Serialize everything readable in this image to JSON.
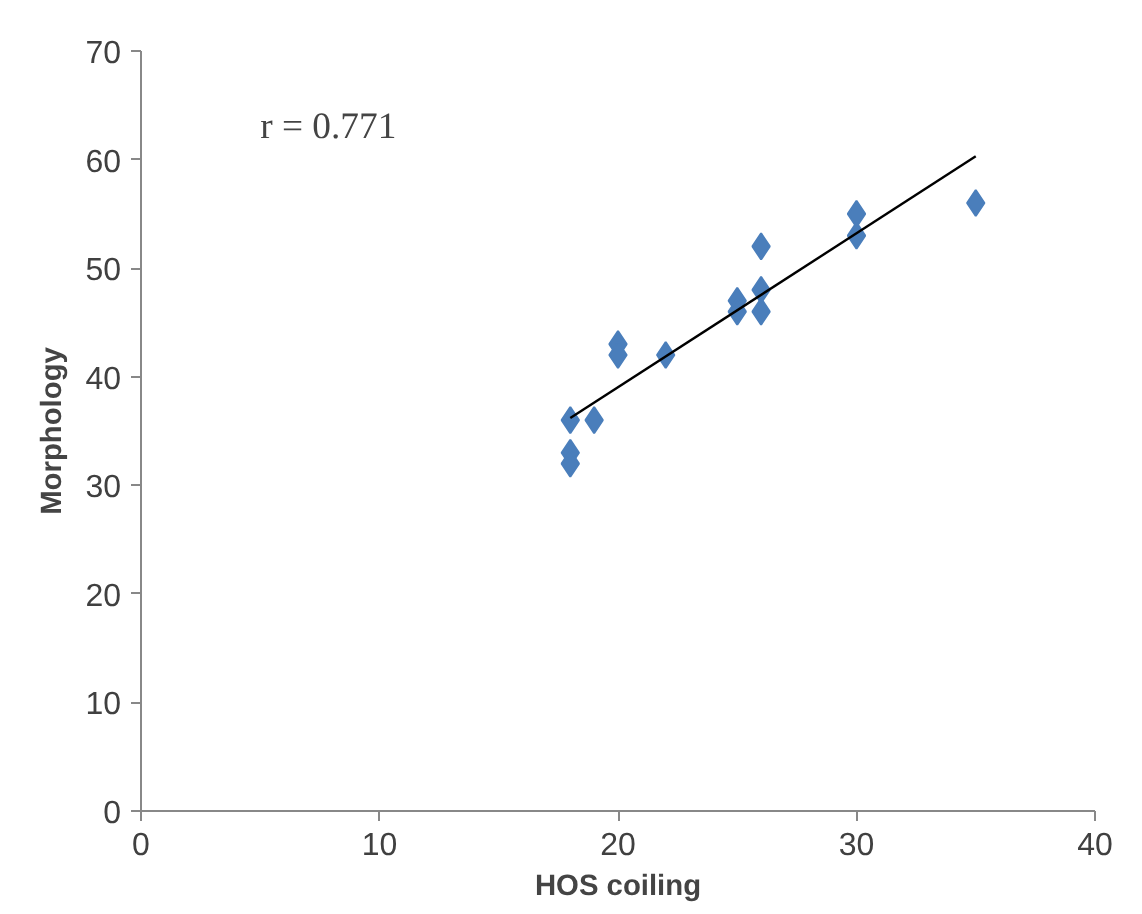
{
  "chart_data": {
    "type": "scatter",
    "xlabel": "HOS coiling",
    "ylabel": "Morphology",
    "xlim": [
      0,
      40
    ],
    "ylim": [
      0,
      70
    ],
    "xticks": [
      0,
      10,
      20,
      30,
      40
    ],
    "yticks": [
      0,
      10,
      20,
      30,
      40,
      50,
      60,
      70
    ],
    "grid": false,
    "marker": "diamond",
    "annotations": [
      "r = 0.771"
    ],
    "series": [
      {
        "color": "#4a7ebb",
        "x": [
          18,
          18,
          18,
          19,
          20,
          20,
          22,
          25,
          25,
          26,
          26,
          26,
          30,
          30,
          35
        ],
        "values": [
          36,
          33,
          32,
          36,
          43,
          42,
          42,
          47,
          46,
          48,
          46,
          52,
          55,
          53,
          56
        ]
      },
      {
        "type": "line",
        "marker": "none",
        "color": "#000000",
        "x": [
          18,
          35
        ],
        "values": [
          36.2,
          60.3
        ]
      }
    ]
  }
}
